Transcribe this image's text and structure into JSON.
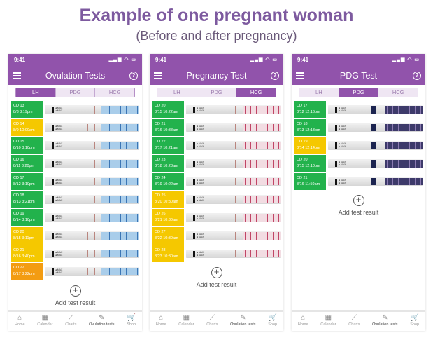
{
  "title": "Example of one pregnant woman",
  "subtitle": "(Before and after pregnancy)",
  "colors": {
    "purple": "#9153ab",
    "green": "#22b24c",
    "yellow": "#f5c800",
    "orange": "#f39c12"
  },
  "phones": [
    {
      "time": "9:41",
      "title": "Ovulation Tests",
      "tabs": [
        "LH",
        "PDG",
        "HCG"
      ],
      "active_tab": 0,
      "test": "lh",
      "rows": [
        {
          "cd": "CD 13",
          "dt": "8/8  3:19pm",
          "c": "green"
        },
        {
          "cd": "CD 14",
          "dt": "8/9  10:00am",
          "c": "yellow"
        },
        {
          "cd": "CD 15",
          "dt": "8/10  3:10pm",
          "c": "green"
        },
        {
          "cd": "CD 16",
          "dt": "8/11  3:20pm",
          "c": "green"
        },
        {
          "cd": "CD 17",
          "dt": "8/12  3:10pm",
          "c": "green"
        },
        {
          "cd": "CD 18",
          "dt": "8/13  3:21pm",
          "c": "green"
        },
        {
          "cd": "CD 19",
          "dt": "8/14  3:10pm",
          "c": "green"
        },
        {
          "cd": "CD 20",
          "dt": "8/15  3:11pm",
          "c": "yellow"
        },
        {
          "cd": "CD 21",
          "dt": "8/16  3:40pm",
          "c": "yellow"
        },
        {
          "cd": "CD 22",
          "dt": "8/17  3:22pm",
          "c": "orange"
        }
      ],
      "add_label": "Add test result"
    },
    {
      "time": "9:41",
      "title": "Pregnancy Test",
      "tabs": [
        "LH",
        "PDG",
        "HCG"
      ],
      "active_tab": 2,
      "test": "hcg",
      "rows": [
        {
          "cd": "CD 20",
          "dt": "8/15  10:22am",
          "c": "green"
        },
        {
          "cd": "CD 21",
          "dt": "8/16  10:38am",
          "c": "green"
        },
        {
          "cd": "CD 22",
          "dt": "8/17  10:21am",
          "c": "green"
        },
        {
          "cd": "CD 23",
          "dt": "8/18  10:28am",
          "c": "green"
        },
        {
          "cd": "CD 24",
          "dt": "8/19  10:22am",
          "c": "green"
        },
        {
          "cd": "CD 25",
          "dt": "8/20  10:30am",
          "c": "yellow"
        },
        {
          "cd": "CD 26",
          "dt": "8/21  10:30am",
          "c": "yellow"
        },
        {
          "cd": "CD 27",
          "dt": "8/22  10:30am",
          "c": "yellow"
        },
        {
          "cd": "CD 28",
          "dt": "8/23  10:30am",
          "c": "yellow"
        }
      ],
      "add_label": "Add test result"
    },
    {
      "time": "9:41",
      "title": "PDG Test",
      "tabs": [
        "LH",
        "PDG",
        "HCG"
      ],
      "active_tab": 1,
      "test": "pdg",
      "rows": [
        {
          "cd": "CD 17",
          "dt": "8/12  12:16pm",
          "c": "green"
        },
        {
          "cd": "CD 18",
          "dt": "8/13  12:13pm",
          "c": "green"
        },
        {
          "cd": "CD 19",
          "dt": "8/14  12:14pm",
          "c": "yellow"
        },
        {
          "cd": "CD 20",
          "dt": "8/15  12:10pm",
          "c": "green"
        },
        {
          "cd": "CD 21",
          "dt": "8/16  11:50am",
          "c": "green"
        }
      ],
      "add_label": "Add test result"
    }
  ],
  "nav": [
    {
      "label": "Home",
      "icon": "home-icon",
      "glyph": "⌂"
    },
    {
      "label": "Calendar",
      "icon": "calendar-icon",
      "glyph": "▦"
    },
    {
      "label": "Charts",
      "icon": "chart-icon",
      "glyph": "⟋"
    },
    {
      "label": "Ovulation tests",
      "icon": "test-strip-icon",
      "glyph": "✎"
    },
    {
      "label": "Shop",
      "icon": "cart-icon",
      "glyph": "🛒"
    }
  ],
  "nav_active": 3
}
